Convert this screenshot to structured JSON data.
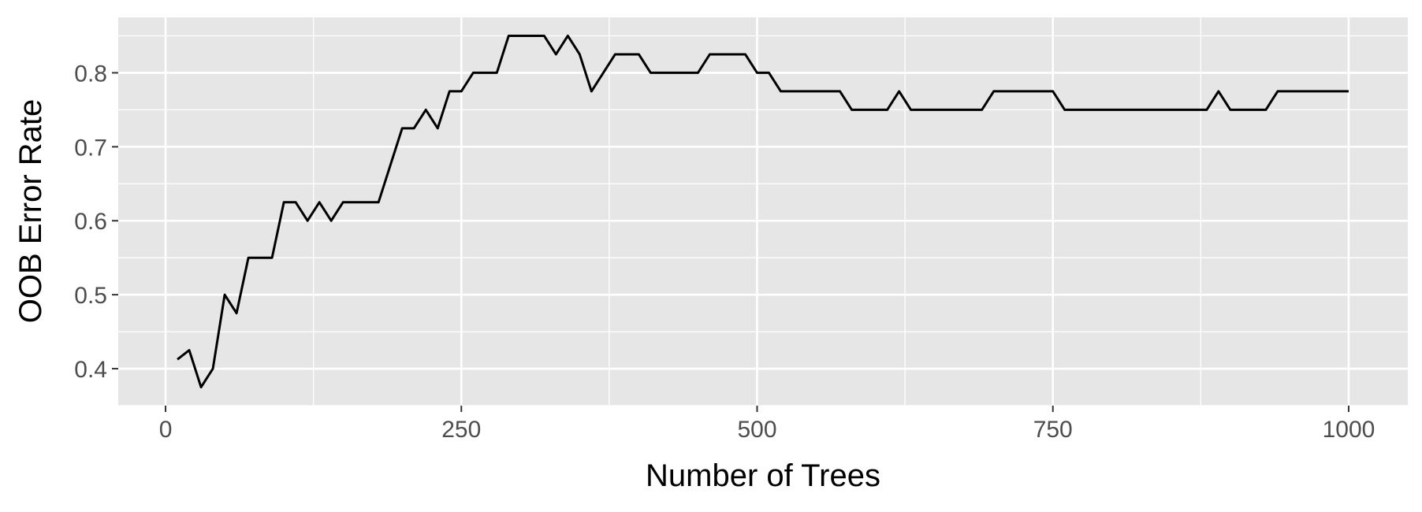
{
  "chart_data": {
    "type": "line",
    "xlabel": "Number of Trees",
    "ylabel": "OOB Error Rate",
    "xlim": [
      -40,
      1050
    ],
    "ylim": [
      0.35,
      0.875
    ],
    "x_ticks": [
      0,
      250,
      500,
      750,
      1000
    ],
    "x_tick_labels": [
      "0",
      "250",
      "500",
      "750",
      "1000"
    ],
    "y_ticks": [
      0.4,
      0.5,
      0.6,
      0.7,
      0.8
    ],
    "y_tick_labels": [
      "0.4",
      "0.5",
      "0.6",
      "0.7",
      "0.8"
    ],
    "grid": true,
    "panel_background": "#e6e6e6",
    "grid_color": "#ffffff",
    "line_color": "#000000",
    "series": [
      {
        "x": [
          10,
          20,
          30,
          40,
          50,
          60,
          70,
          80,
          90,
          100,
          110,
          120,
          130,
          140,
          150,
          160,
          170,
          180,
          190,
          200,
          210,
          220,
          230,
          240,
          250,
          260,
          270,
          280,
          290,
          300,
          310,
          320,
          330,
          340,
          350,
          360,
          370,
          380,
          390,
          400,
          410,
          420,
          430,
          440,
          450,
          460,
          470,
          480,
          490,
          500,
          510,
          520,
          530,
          540,
          550,
          560,
          570,
          580,
          590,
          600,
          610,
          620,
          630,
          640,
          650,
          660,
          670,
          680,
          690,
          700,
          710,
          720,
          730,
          740,
          750,
          760,
          770,
          780,
          790,
          800,
          810,
          820,
          830,
          840,
          850,
          860,
          870,
          880,
          890,
          900,
          910,
          920,
          930,
          940,
          950,
          960,
          970,
          980,
          990,
          1000
        ],
        "y": [
          0.4125,
          0.425,
          0.375,
          0.4,
          0.5,
          0.475,
          0.55,
          0.55,
          0.55,
          0.625,
          0.625,
          0.6,
          0.625,
          0.6,
          0.625,
          0.625,
          0.625,
          0.625,
          0.675,
          0.725,
          0.725,
          0.75,
          0.725,
          0.775,
          0.775,
          0.8,
          0.8,
          0.8,
          0.85,
          0.85,
          0.85,
          0.85,
          0.825,
          0.85,
          0.825,
          0.775,
          0.8,
          0.825,
          0.825,
          0.825,
          0.8,
          0.8,
          0.8,
          0.8,
          0.8,
          0.825,
          0.825,
          0.825,
          0.825,
          0.8,
          0.8,
          0.775,
          0.775,
          0.775,
          0.775,
          0.775,
          0.775,
          0.75,
          0.75,
          0.75,
          0.75,
          0.775,
          0.75,
          0.75,
          0.75,
          0.75,
          0.75,
          0.75,
          0.75,
          0.775,
          0.775,
          0.775,
          0.775,
          0.775,
          0.775,
          0.75,
          0.75,
          0.75,
          0.75,
          0.75,
          0.75,
          0.75,
          0.75,
          0.75,
          0.75,
          0.75,
          0.75,
          0.75,
          0.775,
          0.75,
          0.75,
          0.75,
          0.75,
          0.775,
          0.775,
          0.775,
          0.775,
          0.775,
          0.775,
          0.775
        ]
      }
    ]
  }
}
